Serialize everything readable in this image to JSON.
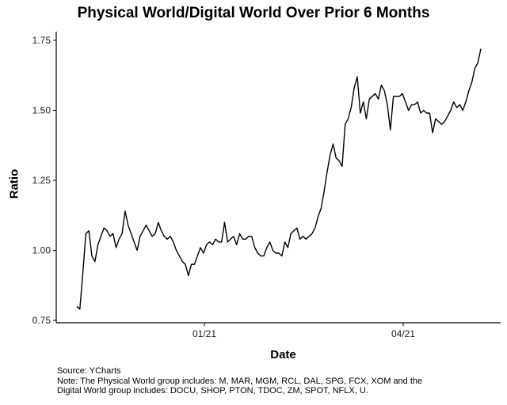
{
  "chart_data": {
    "type": "line",
    "title": "Physical World/Digital World Over Prior 6 Months",
    "xlabel": "Date",
    "ylabel": "Ratio",
    "x_tick_labels": [
      "01/21",
      "04/21"
    ],
    "y_tick_labels": [
      "0.75",
      "1.00",
      "1.25",
      "1.50",
      "1.75"
    ],
    "ylim": [
      0.75,
      1.75
    ],
    "grid": false,
    "legend": "none",
    "line_color": "#000000",
    "series": [
      {
        "values": [
          0.8,
          0.79,
          0.92,
          1.06,
          1.07,
          0.98,
          0.96,
          1.02,
          1.05,
          1.08,
          1.07,
          1.05,
          1.06,
          1.01,
          1.04,
          1.06,
          1.14,
          1.09,
          1.06,
          1.03,
          1.0,
          1.05,
          1.07,
          1.09,
          1.07,
          1.05,
          1.06,
          1.1,
          1.07,
          1.05,
          1.04,
          1.05,
          1.03,
          1.0,
          0.98,
          0.96,
          0.95,
          0.91,
          0.95,
          0.95,
          0.98,
          1.01,
          0.99,
          1.02,
          1.03,
          1.02,
          1.04,
          1.03,
          1.03,
          1.1,
          1.03,
          1.04,
          1.05,
          1.02,
          1.06,
          1.04,
          1.04,
          1.05,
          1.05,
          1.01,
          0.99,
          0.98,
          0.98,
          1.01,
          1.03,
          1.0,
          0.99,
          0.99,
          0.98,
          1.03,
          1.01,
          1.06,
          1.07,
          1.08,
          1.04,
          1.05,
          1.04,
          1.05,
          1.06,
          1.08,
          1.12,
          1.15,
          1.21,
          1.28,
          1.34,
          1.38,
          1.33,
          1.32,
          1.3,
          1.45,
          1.47,
          1.51,
          1.58,
          1.62,
          1.49,
          1.53,
          1.47,
          1.54,
          1.55,
          1.56,
          1.54,
          1.59,
          1.57,
          1.52,
          1.43,
          1.55,
          1.55,
          1.55,
          1.56,
          1.53,
          1.5,
          1.52,
          1.52,
          1.53,
          1.49,
          1.5,
          1.49,
          1.49,
          1.42,
          1.47,
          1.46,
          1.45,
          1.46,
          1.48,
          1.5,
          1.53,
          1.51,
          1.52,
          1.5,
          1.53,
          1.57,
          1.6,
          1.65,
          1.67,
          1.72
        ]
      }
    ]
  },
  "notes": {
    "source": "Source: YCharts",
    "line1": "Note: The Physical World group includes: M, MAR, MGM, RCL, DAL, SPG, FCX, XOM and the",
    "line2": "Digital World group includes: DOCU, SHOP, PTON, TDOC, ZM, SPOT, NFLX, U."
  }
}
